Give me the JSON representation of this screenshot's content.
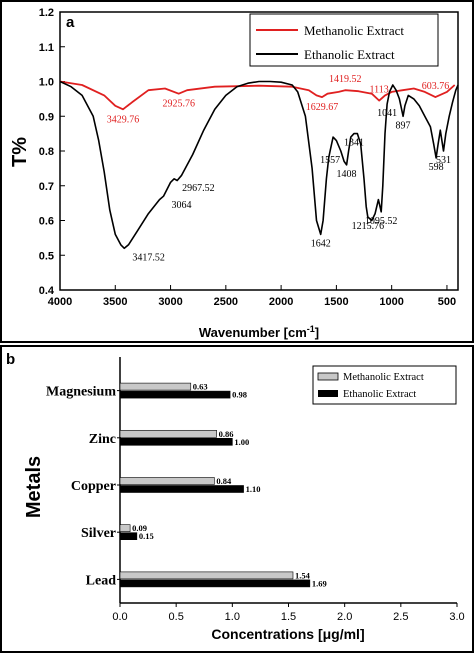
{
  "chart_data": [
    {
      "type": "line",
      "panel_label": "a",
      "xlabel": "Wavenumber [cm",
      "xlabel_sup": "-1",
      "xlabel_end": "]",
      "ylabel": "T%",
      "xlim": [
        4000,
        400
      ],
      "ylim": [
        0.4,
        1.2
      ],
      "x_ticks": [
        4000,
        3500,
        3000,
        2500,
        2000,
        1500,
        1000,
        500
      ],
      "y_ticks": [
        "0.4",
        "0.5",
        "0.6",
        "0.7",
        "0.8",
        "0.9",
        "1.0",
        "1.1",
        "1.2"
      ],
      "legend_position": "top-right",
      "series": [
        {
          "name": "Methanolic Extract",
          "color": "#e02020",
          "points": [
            [
              4000,
              1.0
            ],
            [
              3800,
              0.99
            ],
            [
              3600,
              0.96
            ],
            [
              3500,
              0.93
            ],
            [
              3430,
              0.92
            ],
            [
              3350,
              0.94
            ],
            [
              3200,
              0.975
            ],
            [
              3050,
              0.98
            ],
            [
              2926,
              0.965
            ],
            [
              2850,
              0.975
            ],
            [
              2600,
              0.985
            ],
            [
              2200,
              0.988
            ],
            [
              1900,
              0.985
            ],
            [
              1750,
              0.975
            ],
            [
              1680,
              0.96
            ],
            [
              1630,
              0.955
            ],
            [
              1580,
              0.965
            ],
            [
              1480,
              0.97
            ],
            [
              1420,
              0.975
            ],
            [
              1300,
              0.972
            ],
            [
              1180,
              0.965
            ],
            [
              1113,
              0.945
            ],
            [
              1060,
              0.96
            ],
            [
              1000,
              0.97
            ],
            [
              900,
              0.975
            ],
            [
              800,
              0.98
            ],
            [
              700,
              0.97
            ],
            [
              604,
              0.955
            ],
            [
              500,
              0.97
            ],
            [
              430,
              0.99
            ]
          ],
          "annotations": [
            {
              "x": 3429.76,
              "y": 0.92,
              "label": "3429.76"
            },
            {
              "x": 2925.76,
              "y": 0.965,
              "label": "2925.76"
            },
            {
              "x": 1629.67,
              "y": 0.955,
              "label": "1629.67"
            },
            {
              "x": 1419.52,
              "y": 0.975,
              "label": "1419.52"
            },
            {
              "x": 1113,
              "y": 0.945,
              "label": "1113"
            },
            {
              "x": 603.76,
              "y": 0.955,
              "label": "603.76"
            }
          ]
        },
        {
          "name": "Ethanolic Extract",
          "color": "#000000",
          "points": [
            [
              4000,
              1.0
            ],
            [
              3900,
              0.985
            ],
            [
              3800,
              0.96
            ],
            [
              3700,
              0.9
            ],
            [
              3650,
              0.83
            ],
            [
              3600,
              0.74
            ],
            [
              3550,
              0.63
            ],
            [
              3500,
              0.56
            ],
            [
              3450,
              0.53
            ],
            [
              3418,
              0.52
            ],
            [
              3380,
              0.53
            ],
            [
              3300,
              0.57
            ],
            [
              3200,
              0.62
            ],
            [
              3100,
              0.66
            ],
            [
              3064,
              0.67
            ],
            [
              3000,
              0.71
            ],
            [
              2968,
              0.72
            ],
            [
              2940,
              0.715
            ],
            [
              2900,
              0.73
            ],
            [
              2800,
              0.79
            ],
            [
              2700,
              0.86
            ],
            [
              2600,
              0.92
            ],
            [
              2500,
              0.96
            ],
            [
              2400,
              0.985
            ],
            [
              2300,
              0.995
            ],
            [
              2200,
              1.0
            ],
            [
              2100,
              1.0
            ],
            [
              2000,
              0.998
            ],
            [
              1900,
              0.99
            ],
            [
              1850,
              0.97
            ],
            [
              1780,
              0.9
            ],
            [
              1720,
              0.75
            ],
            [
              1680,
              0.6
            ],
            [
              1642,
              0.56
            ],
            [
              1620,
              0.6
            ],
            [
              1590,
              0.72
            ],
            [
              1570,
              0.78
            ],
            [
              1557,
              0.8
            ],
            [
              1530,
              0.84
            ],
            [
              1500,
              0.83
            ],
            [
              1460,
              0.8
            ],
            [
              1430,
              0.77
            ],
            [
              1408,
              0.76
            ],
            [
              1390,
              0.8
            ],
            [
              1370,
              0.84
            ],
            [
              1341,
              0.85
            ],
            [
              1310,
              0.85
            ],
            [
              1280,
              0.82
            ],
            [
              1250,
              0.72
            ],
            [
              1230,
              0.64
            ],
            [
              1216,
              0.61
            ],
            [
              1180,
              0.6
            ],
            [
              1150,
              0.62
            ],
            [
              1120,
              0.66
            ],
            [
              1095,
              0.625
            ],
            [
              1080,
              0.7
            ],
            [
              1060,
              0.85
            ],
            [
              1041,
              0.935
            ],
            [
              1020,
              0.97
            ],
            [
              990,
              0.99
            ],
            [
              960,
              0.975
            ],
            [
              930,
              0.95
            ],
            [
              897,
              0.9
            ],
            [
              880,
              0.93
            ],
            [
              850,
              0.96
            ],
            [
              800,
              0.95
            ],
            [
              750,
              0.93
            ],
            [
              700,
              0.9
            ],
            [
              650,
              0.87
            ],
            [
              620,
              0.82
            ],
            [
              598,
              0.78
            ],
            [
              580,
              0.82
            ],
            [
              560,
              0.86
            ],
            [
              531,
              0.8
            ],
            [
              510,
              0.85
            ],
            [
              480,
              0.9
            ],
            [
              450,
              0.94
            ],
            [
              420,
              0.975
            ],
            [
              400,
              0.99
            ]
          ],
          "annotations": [
            {
              "x": 3417.52,
              "y": 0.52,
              "label": "3417.52"
            },
            {
              "x": 3064,
              "y": 0.67,
              "label": "3064"
            },
            {
              "x": 2967.52,
              "y": 0.72,
              "label": "2967.52"
            },
            {
              "x": 1642,
              "y": 0.56,
              "label": "1642"
            },
            {
              "x": 1557,
              "y": 0.8,
              "label": "1557"
            },
            {
              "x": 1408,
              "y": 0.76,
              "label": "1408"
            },
            {
              "x": 1341,
              "y": 0.85,
              "label": "1341"
            },
            {
              "x": 1215.76,
              "y": 0.61,
              "label": "1215.76"
            },
            {
              "x": 1095.52,
              "y": 0.625,
              "label": "1095.52"
            },
            {
              "x": 1041,
              "y": 0.935,
              "label": "1041"
            },
            {
              "x": 897,
              "y": 0.9,
              "label": "897"
            },
            {
              "x": 598,
              "y": 0.78,
              "label": "598"
            },
            {
              "x": 531,
              "y": 0.8,
              "label": "531"
            }
          ]
        }
      ]
    },
    {
      "type": "bar",
      "orientation": "horizontal",
      "panel_label": "b",
      "xlabel": "Concentrations [μg/ml]",
      "ylabel": "Metals",
      "xlim": [
        0,
        3.0
      ],
      "x_ticks": [
        "0.0",
        "0.5",
        "1.0",
        "1.5",
        "2.0",
        "2.5",
        "3.0"
      ],
      "categories": [
        "Magnesium",
        "Zinc",
        "Copper",
        "Silver",
        "Lead"
      ],
      "legend_position": "top-right",
      "series": [
        {
          "name": "Methanolic Extract",
          "color": "#c8c8c8",
          "values": [
            0.63,
            0.86,
            0.84,
            0.09,
            1.54
          ],
          "labels": [
            "0.63",
            "0.86",
            "0.84",
            "0.09",
            "1.54"
          ]
        },
        {
          "name": "Ethanolic Extract",
          "color": "#000000",
          "values": [
            0.98,
            1.0,
            1.1,
            0.15,
            1.69
          ],
          "labels": [
            "0.98",
            "1.00",
            "1.10",
            "0.15",
            "1.69"
          ]
        }
      ]
    }
  ]
}
